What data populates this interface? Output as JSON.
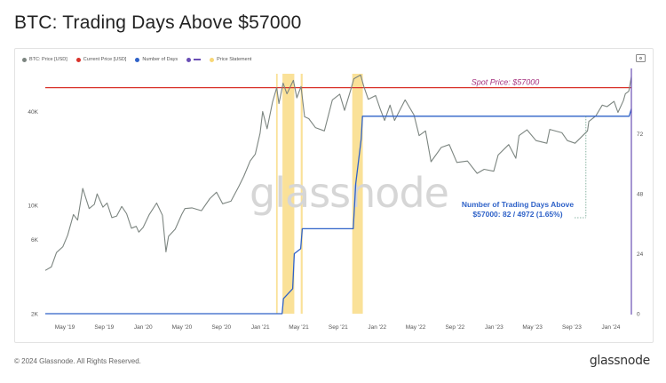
{
  "title": "BTC: Trading Days Above $57000",
  "footer": {
    "copyright": "© 2024 Glassnode. All Rights Reserved.",
    "brand": "glassnode"
  },
  "watermark": "glassnode",
  "colors": {
    "price": "#7c8580",
    "current_price": "#d9332b",
    "days": "#2f62c8",
    "statement": "#f8d776",
    "spot_label": "#a6337f",
    "annotation": "#2f62c8",
    "right_axis": "#6a4fb5"
  },
  "legend": [
    {
      "label": "BTC: Price [USD]",
      "color": "#7c8580",
      "kind": "dot",
      "icon": "circle-icon"
    },
    {
      "label": "Current Price [USD]",
      "color": "#d9332b",
      "kind": "dot",
      "icon": "circle-icon"
    },
    {
      "label": "Number of Days",
      "color": "#2f62c8",
      "kind": "dot",
      "icon": "circle-icon"
    },
    {
      "label": "",
      "color": "#6a4fb5",
      "kind": "line",
      "icon": "line-icon"
    },
    {
      "label": "Price Statement",
      "color": "#f8d776",
      "kind": "dot",
      "icon": "circle-icon"
    }
  ],
  "toolbar": {
    "icon": "camera-icon"
  },
  "chart_data": {
    "type": "line",
    "title": "BTC: Trading Days Above $57000",
    "x_ticks": [
      "May '19",
      "Sep '19",
      "Jan '20",
      "May '20",
      "Sep '20",
      "Jan '21",
      "May '21",
      "Sep '21",
      "Jan '22",
      "May '22",
      "Sep '22",
      "Jan '23",
      "May '23",
      "Sep '23",
      "Jan '24"
    ],
    "x_range": [
      "2019-03-01",
      "2024-03-05"
    ],
    "y_left": {
      "scale": "log",
      "ticks": [
        "2K",
        "6K",
        "10K",
        "40K"
      ],
      "tick_values": [
        2000,
        6000,
        10000,
        40000
      ],
      "range": [
        2000,
        70000
      ]
    },
    "y_right": {
      "scale": "linear",
      "ticks": [
        "0",
        "24",
        "48",
        "72"
      ],
      "tick_values": [
        0,
        24,
        48,
        72
      ],
      "range": [
        0,
        96
      ]
    },
    "spot_price": {
      "value": 57000,
      "label": "Spot Price: $57000"
    },
    "annotation": {
      "line1": "Number of Trading Days Above",
      "line2": "$57000: 82 / 4972 (1.65%)"
    },
    "series": [
      {
        "name": "BTC: Price [USD]",
        "axis": "left",
        "points": [
          [
            "2019-03-01",
            3800
          ],
          [
            "2019-03-20",
            4000
          ],
          [
            "2019-04-05",
            4950
          ],
          [
            "2019-04-25",
            5400
          ],
          [
            "2019-05-10",
            6400
          ],
          [
            "2019-05-28",
            8700
          ],
          [
            "2019-06-10",
            8000
          ],
          [
            "2019-06-26",
            12800
          ],
          [
            "2019-07-05",
            11200
          ],
          [
            "2019-07-16",
            9500
          ],
          [
            "2019-08-01",
            10100
          ],
          [
            "2019-08-10",
            11800
          ],
          [
            "2019-08-28",
            9700
          ],
          [
            "2019-09-10",
            10300
          ],
          [
            "2019-09-25",
            8300
          ],
          [
            "2019-10-10",
            8500
          ],
          [
            "2019-10-26",
            9800
          ],
          [
            "2019-11-10",
            8800
          ],
          [
            "2019-11-25",
            7100
          ],
          [
            "2019-12-10",
            7300
          ],
          [
            "2019-12-18",
            6700
          ],
          [
            "2020-01-01",
            7200
          ],
          [
            "2020-01-20",
            8700
          ],
          [
            "2020-02-12",
            10300
          ],
          [
            "2020-03-01",
            8600
          ],
          [
            "2020-03-12",
            5000
          ],
          [
            "2020-03-20",
            6300
          ],
          [
            "2020-04-10",
            7000
          ],
          [
            "2020-04-30",
            8700
          ],
          [
            "2020-05-10",
            9500
          ],
          [
            "2020-06-01",
            9600
          ],
          [
            "2020-07-01",
            9200
          ],
          [
            "2020-07-27",
            11000
          ],
          [
            "2020-08-17",
            12100
          ],
          [
            "2020-09-05",
            10200
          ],
          [
            "2020-10-01",
            10600
          ],
          [
            "2020-10-25",
            13100
          ],
          [
            "2020-11-10",
            15300
          ],
          [
            "2020-11-30",
            19200
          ],
          [
            "2020-12-16",
            21300
          ],
          [
            "2020-12-31",
            29000
          ],
          [
            "2021-01-08",
            40000
          ],
          [
            "2021-01-22",
            31000
          ],
          [
            "2021-02-08",
            46000
          ],
          [
            "2021-02-21",
            57000
          ],
          [
            "2021-02-28",
            45000
          ],
          [
            "2021-03-13",
            61000
          ],
          [
            "2021-03-25",
            52000
          ],
          [
            "2021-04-14",
            63500
          ],
          [
            "2021-04-25",
            49000
          ],
          [
            "2021-05-08",
            58000
          ],
          [
            "2021-05-19",
            37000
          ],
          [
            "2021-06-01",
            36000
          ],
          [
            "2021-06-22",
            31500
          ],
          [
            "2021-07-20",
            30000
          ],
          [
            "2021-08-14",
            47500
          ],
          [
            "2021-09-06",
            51700
          ],
          [
            "2021-09-21",
            40700
          ],
          [
            "2021-10-10",
            55000
          ],
          [
            "2021-10-20",
            65000
          ],
          [
            "2021-11-10",
            68700
          ],
          [
            "2021-11-20",
            58000
          ],
          [
            "2021-12-04",
            48000
          ],
          [
            "2021-12-27",
            50700
          ],
          [
            "2022-01-10",
            41800
          ],
          [
            "2022-01-24",
            35000
          ],
          [
            "2022-02-10",
            44000
          ],
          [
            "2022-02-24",
            35000
          ],
          [
            "2022-03-29",
            47500
          ],
          [
            "2022-04-26",
            38000
          ],
          [
            "2022-05-12",
            28000
          ],
          [
            "2022-06-01",
            30000
          ],
          [
            "2022-06-18",
            19000
          ],
          [
            "2022-07-20",
            23500
          ],
          [
            "2022-08-14",
            24500
          ],
          [
            "2022-09-07",
            18800
          ],
          [
            "2022-10-10",
            19200
          ],
          [
            "2022-11-09",
            16000
          ],
          [
            "2022-12-01",
            17000
          ],
          [
            "2022-12-31",
            16500
          ],
          [
            "2023-01-14",
            21000
          ],
          [
            "2023-02-16",
            24500
          ],
          [
            "2023-03-10",
            20000
          ],
          [
            "2023-03-20",
            28000
          ],
          [
            "2023-04-14",
            30500
          ],
          [
            "2023-05-12",
            26000
          ],
          [
            "2023-06-15",
            25000
          ],
          [
            "2023-06-24",
            30700
          ],
          [
            "2023-08-01",
            29200
          ],
          [
            "2023-08-18",
            26000
          ],
          [
            "2023-09-11",
            25000
          ],
          [
            "2023-10-20",
            30000
          ],
          [
            "2023-10-24",
            34500
          ],
          [
            "2023-11-15",
            37500
          ],
          [
            "2023-12-05",
            44000
          ],
          [
            "2023-12-20",
            43000
          ],
          [
            "2024-01-11",
            46500
          ],
          [
            "2024-01-23",
            39500
          ],
          [
            "2024-02-09",
            47000
          ],
          [
            "2024-02-15",
            52000
          ],
          [
            "2024-02-26",
            54000
          ],
          [
            "2024-03-05",
            67000
          ]
        ]
      },
      {
        "name": "Number of Days",
        "axis": "right",
        "points": [
          [
            "2019-03-01",
            0
          ],
          [
            "2021-03-10",
            0
          ],
          [
            "2021-03-14",
            6
          ],
          [
            "2021-04-12",
            10
          ],
          [
            "2021-04-17",
            24
          ],
          [
            "2021-05-07",
            26
          ],
          [
            "2021-05-12",
            34
          ],
          [
            "2021-10-18",
            34
          ],
          [
            "2021-10-26",
            52
          ],
          [
            "2021-11-12",
            70
          ],
          [
            "2021-11-16",
            79
          ],
          [
            "2024-02-27",
            79
          ],
          [
            "2024-03-05",
            82
          ]
        ]
      }
    ],
    "price_statement_periods": [
      [
        "2021-02-19",
        "2021-02-24"
      ],
      [
        "2021-03-11",
        "2021-04-17"
      ],
      [
        "2021-05-07",
        "2021-05-13"
      ],
      [
        "2021-10-15",
        "2021-11-17"
      ]
    ]
  }
}
